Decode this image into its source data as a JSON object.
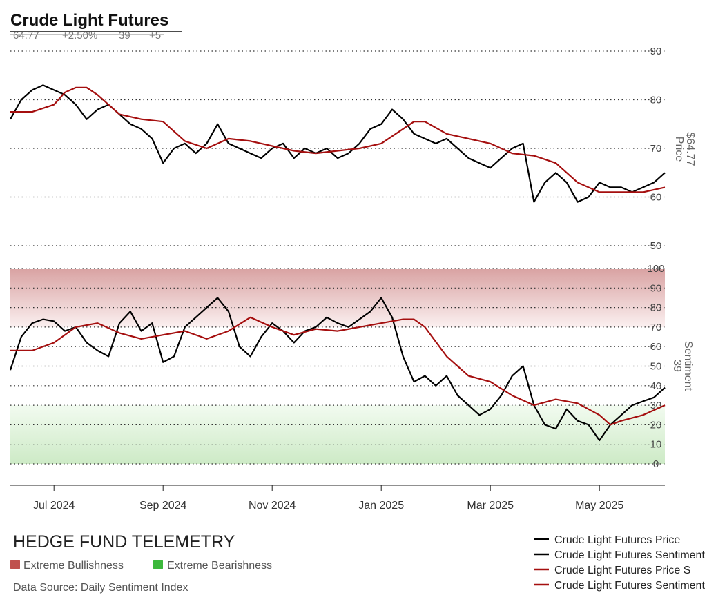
{
  "header": {
    "title": "Crude Light Futures",
    "stats": [
      "64.77",
      "+2.50%",
      "39",
      "+5"
    ]
  },
  "branding": {
    "name": "HEDGE FUND TELEMETRY",
    "zones": [
      {
        "label": "Extreme Bullishness",
        "color": "#c0504d"
      },
      {
        "label": "Extreme Bearishness",
        "color": "#3cb83c"
      }
    ],
    "source": "Data Source: Daily Sentiment Index"
  },
  "legend": [
    {
      "label": "Crude Light Futures Price",
      "color": "#000000"
    },
    {
      "label": "Crude Light Futures Sentiment",
      "color": "#000000"
    },
    {
      "label": "Crude Light Futures Price S",
      "color": "#a50f0f"
    },
    {
      "label": "Crude Light Futures Sentiment",
      "color": "#a50f0f"
    }
  ],
  "chart_data": [
    {
      "type": "line",
      "ylabel": "Price",
      "value_label": "$64.77",
      "ylim": [
        50,
        90
      ],
      "yticks": [
        50,
        60,
        70,
        80,
        90
      ],
      "grid": true,
      "xlim": [
        0,
        60
      ],
      "x_ticks": [
        {
          "label": "Jul 2024",
          "x": 4
        },
        {
          "label": "Sep 2024",
          "x": 14
        },
        {
          "label": "Nov 2024",
          "x": 24
        },
        {
          "label": "Jan 2025",
          "x": 34
        },
        {
          "label": "Mar 2025",
          "x": 44
        },
        {
          "label": "May 2025",
          "x": 54
        }
      ],
      "series": [
        {
          "color": "#000000",
          "x": [
            0,
            1,
            2,
            3,
            4,
            5,
            6,
            7,
            8,
            9,
            10,
            11,
            12,
            13,
            14,
            15,
            16,
            17,
            18,
            19,
            20,
            21,
            22,
            23,
            24,
            25,
            26,
            27,
            28,
            29,
            30,
            31,
            32,
            33,
            34,
            35,
            36,
            37,
            38,
            39,
            40,
            41,
            42,
            43,
            44,
            45,
            46,
            47,
            48,
            49,
            50,
            51,
            52,
            53,
            54,
            55,
            56,
            57,
            58,
            59,
            60
          ],
          "y": [
            76,
            80,
            82,
            83,
            82,
            81,
            79,
            76,
            78,
            79,
            77,
            75,
            74,
            72,
            67,
            70,
            71,
            69,
            71,
            75,
            71,
            70,
            69,
            68,
            70,
            71,
            68,
            70,
            69,
            70,
            68,
            69,
            71,
            74,
            75,
            78,
            76,
            73,
            72,
            71,
            72,
            70,
            68,
            67,
            66,
            68,
            70,
            71,
            59,
            63,
            65,
            63,
            59,
            60,
            63,
            62,
            62,
            61,
            62,
            63,
            65
          ]
        },
        {
          "color": "#a50f0f",
          "x": [
            0,
            2,
            4,
            5,
            6,
            7,
            8,
            10,
            12,
            14,
            16,
            18,
            20,
            22,
            24,
            26,
            28,
            30,
            32,
            34,
            36,
            37,
            38,
            40,
            42,
            44,
            46,
            48,
            50,
            52,
            54,
            56,
            58,
            59,
            60
          ],
          "y": [
            77.5,
            77.5,
            79,
            81.5,
            82.5,
            82.5,
            81,
            77,
            76,
            75.5,
            71.5,
            70,
            72,
            71.5,
            70.5,
            69.5,
            69,
            69.5,
            70,
            71,
            74,
            75.5,
            75.5,
            73,
            72,
            71,
            69,
            68.5,
            67,
            63,
            61,
            61,
            61,
            61.5,
            62
          ]
        }
      ]
    },
    {
      "type": "line",
      "ylabel": "Sentiment",
      "value_label": "39",
      "ylim": [
        0,
        100
      ],
      "yticks": [
        0,
        10,
        20,
        30,
        40,
        50,
        60,
        70,
        80,
        90,
        100
      ],
      "grid": true,
      "bands": [
        {
          "from": 70,
          "to": 100,
          "color": "#c0504d"
        },
        {
          "from": 0,
          "to": 30,
          "color": "#3cb83c"
        }
      ],
      "xlim": [
        0,
        60
      ],
      "series": [
        {
          "color": "#000000",
          "x": [
            0,
            1,
            2,
            3,
            4,
            5,
            6,
            7,
            8,
            9,
            10,
            11,
            12,
            13,
            14,
            15,
            16,
            17,
            18,
            19,
            20,
            21,
            22,
            23,
            24,
            25,
            26,
            27,
            28,
            29,
            30,
            31,
            32,
            33,
            34,
            35,
            36,
            37,
            38,
            39,
            40,
            41,
            42,
            43,
            44,
            45,
            46,
            47,
            48,
            49,
            50,
            51,
            52,
            53,
            54,
            55,
            56,
            57,
            58,
            59,
            60
          ],
          "y": [
            48,
            65,
            72,
            74,
            73,
            68,
            70,
            62,
            58,
            55,
            72,
            78,
            68,
            72,
            52,
            55,
            70,
            75,
            80,
            85,
            78,
            60,
            55,
            65,
            72,
            68,
            62,
            68,
            70,
            75,
            72,
            70,
            74,
            78,
            85,
            75,
            55,
            42,
            45,
            40,
            45,
            35,
            30,
            25,
            28,
            35,
            45,
            50,
            30,
            20,
            18,
            28,
            22,
            20,
            12,
            20,
            25,
            30,
            32,
            34,
            39
          ]
        },
        {
          "color": "#a50f0f",
          "x": [
            0,
            2,
            4,
            6,
            8,
            10,
            12,
            14,
            16,
            18,
            20,
            22,
            24,
            26,
            28,
            30,
            32,
            34,
            36,
            37,
            38,
            40,
            42,
            44,
            46,
            48,
            50,
            52,
            54,
            55,
            56,
            58,
            60
          ],
          "y": [
            58,
            58,
            62,
            70,
            72,
            67,
            64,
            66,
            68,
            64,
            68,
            75,
            70,
            66,
            69,
            68,
            70,
            72,
            74,
            74,
            70,
            55,
            45,
            42,
            35,
            30,
            33,
            31,
            25,
            20,
            22,
            25,
            30
          ]
        }
      ]
    }
  ]
}
